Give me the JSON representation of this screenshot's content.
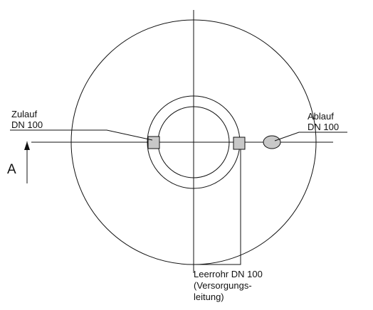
{
  "labels": {
    "inlet": [
      "Zulauf",
      "DN 100"
    ],
    "outlet": [
      "Ablauf",
      "DN 100"
    ],
    "conduit": [
      "Leerrohr DN 100",
      "(Versorgungs-",
      "leitung)"
    ],
    "section": "A"
  },
  "colors": {
    "line": "#111111",
    "fill_gray": "#c8c8c8",
    "background": "#ffffff"
  }
}
